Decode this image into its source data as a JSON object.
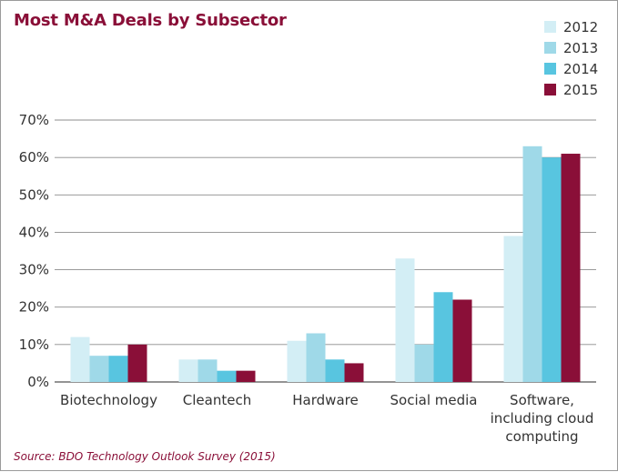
{
  "chart_data": {
    "type": "bar",
    "title": "Most M&A Deals by Subsector",
    "source": "Source: BDO Technology Outlook Survey (2015)",
    "categories": [
      [
        "Biotechnology"
      ],
      [
        "Cleantech"
      ],
      [
        "Hardware"
      ],
      [
        "Social media"
      ],
      [
        "Software,",
        "including cloud",
        "computing"
      ]
    ],
    "series": [
      {
        "name": "2012",
        "color": "#d3eef5",
        "values": [
          12,
          6,
          11,
          33,
          39
        ]
      },
      {
        "name": "2013",
        "color": "#9fd9e8",
        "values": [
          7,
          6,
          13,
          10,
          63
        ]
      },
      {
        "name": "2014",
        "color": "#58c5e0",
        "values": [
          7,
          3,
          6,
          24,
          60
        ]
      },
      {
        "name": "2015",
        "color": "#8a0f38",
        "values": [
          10,
          3,
          5,
          22,
          61
        ]
      }
    ],
    "yticks": [
      "0%",
      "10%",
      "20%",
      "30%",
      "40%",
      "50%",
      "60%",
      "70%"
    ],
    "ylim": [
      0,
      70
    ],
    "grid": true,
    "legend": "top-right"
  }
}
